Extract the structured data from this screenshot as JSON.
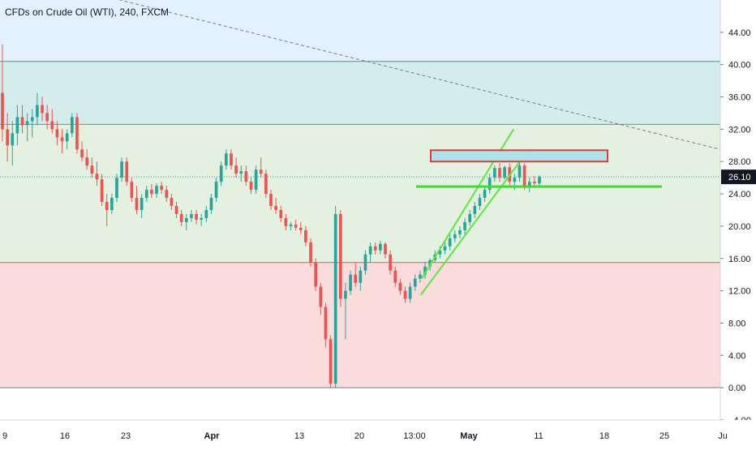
{
  "chart_data": {
    "type": "candlestick",
    "title": "CFDs on Crude Oil (WTI), 240, FXCM",
    "last_price": 26.1,
    "last_price_label": "26.10",
    "ylim": [
      -4,
      48
    ],
    "y_ticks": [
      -4,
      0,
      4,
      8,
      12,
      16,
      20,
      24,
      28,
      32,
      36,
      40,
      44
    ],
    "y_tick_labels": [
      "−4.00",
      "0.00",
      "4.00",
      "8.00",
      "12.00",
      "16.00",
      "20.00",
      "24.00",
      "28.00",
      "32.00",
      "36.00",
      "40.00",
      "44.00"
    ],
    "x_tick_labels": [
      "9",
      "16",
      "23",
      "Apr",
      "13",
      "20",
      "13:00",
      "May",
      "11",
      "18",
      "25",
      "Ju"
    ],
    "zones": [
      {
        "from": 40.4,
        "to": 48,
        "color": "#e3f0fd"
      },
      {
        "from": 32.6,
        "to": 40.4,
        "color": "#d4ecec"
      },
      {
        "from": 15.5,
        "to": 32.6,
        "color": "#e4f1e1"
      },
      {
        "from": 0,
        "to": 15.5,
        "color": "#fadcdc"
      }
    ],
    "horizontal_lines": [
      {
        "y": 40.4,
        "color": "#26a69a"
      },
      {
        "y": 32.6,
        "color": "#4caf50"
      },
      {
        "y": 15.5,
        "color": "#ef5350"
      },
      {
        "y": 0,
        "color": "#787b86"
      }
    ],
    "support_level": 24.9,
    "resistance_box": {
      "from": 28.0,
      "to": 29.4
    },
    "ohlc": [
      [
        36.5,
        42.5,
        30.5,
        32
      ],
      [
        32,
        34,
        28,
        30
      ],
      [
        30,
        33,
        27.5,
        31.5
      ],
      [
        31.5,
        35,
        30,
        33.5
      ],
      [
        33.5,
        35,
        31.5,
        32.5
      ],
      [
        32.5,
        34,
        30.5,
        33
      ],
      [
        33,
        34.5,
        31,
        33.5
      ],
      [
        33.5,
        36.5,
        32.5,
        35
      ],
      [
        35,
        36,
        33,
        34
      ],
      [
        34,
        35,
        32,
        33
      ],
      [
        33,
        34.5,
        31.5,
        32
      ],
      [
        32,
        33,
        30,
        31
      ],
      [
        31,
        32,
        29,
        30.5
      ],
      [
        30.5,
        32,
        29.5,
        31.5
      ],
      [
        31.5,
        34,
        31,
        33.5
      ],
      [
        33.5,
        34,
        29,
        29.5
      ],
      [
        29.5,
        30.5,
        28,
        28.5
      ],
      [
        28.5,
        29.5,
        27,
        27.5
      ],
      [
        27.5,
        28.5,
        26,
        26.5
      ],
      [
        26.5,
        28,
        25,
        25.8
      ],
      [
        25.8,
        26.5,
        22.5,
        23
      ],
      [
        23,
        24,
        20,
        22
      ],
      [
        22,
        24,
        21.5,
        23.5
      ],
      [
        23.5,
        26.5,
        23,
        26
      ],
      [
        26,
        28.5,
        25.5,
        28
      ],
      [
        28,
        28.5,
        25,
        25.5
      ],
      [
        25.5,
        26,
        23,
        23.5
      ],
      [
        23.5,
        25,
        21.5,
        22
      ],
      [
        22,
        24,
        21,
        23.5
      ],
      [
        23.5,
        25,
        23,
        24.5
      ],
      [
        24.5,
        25.2,
        23.5,
        24
      ],
      [
        24,
        25.3,
        23.5,
        25
      ],
      [
        25,
        25.5,
        24,
        24.5
      ],
      [
        24.5,
        25,
        23,
        23.5
      ],
      [
        23.5,
        24,
        22,
        22.5
      ],
      [
        22.5,
        23,
        21,
        21.5
      ],
      [
        21.5,
        22,
        20,
        20.5
      ],
      [
        20.5,
        21.5,
        19.5,
        21
      ],
      [
        21,
        22,
        20.5,
        21.5
      ],
      [
        21.5,
        22,
        20.2,
        20.8
      ],
      [
        20.8,
        21.5,
        20,
        21
      ],
      [
        21,
        22.5,
        20.5,
        22
      ],
      [
        22,
        24,
        21.5,
        23.5
      ],
      [
        23.5,
        26,
        23,
        25.5
      ],
      [
        25.5,
        28,
        25,
        27.5
      ],
      [
        27.5,
        29.5,
        27,
        29
      ],
      [
        29,
        29.5,
        27,
        27.5
      ],
      [
        27.5,
        28.5,
        26,
        26.5
      ],
      [
        26.5,
        27.5,
        25.5,
        26.8
      ],
      [
        26.8,
        27.5,
        25,
        25.5
      ],
      [
        25.5,
        26,
        24,
        24.5
      ],
      [
        24.5,
        27.5,
        24,
        27
      ],
      [
        27,
        28.5,
        26,
        26.5
      ],
      [
        26.5,
        27,
        23.5,
        24
      ],
      [
        24,
        24.5,
        22,
        22.5
      ],
      [
        22.5,
        23.5,
        21.5,
        22
      ],
      [
        22,
        22.5,
        20.5,
        21
      ],
      [
        21,
        21.5,
        19.5,
        20
      ],
      [
        20,
        20.5,
        19.5,
        20.2
      ],
      [
        20.2,
        20.8,
        19.5,
        19.8
      ],
      [
        19.8,
        20.5,
        19,
        19.5
      ],
      [
        19.5,
        20,
        17.5,
        18
      ],
      [
        18,
        18.5,
        15,
        15.5
      ],
      [
        15.5,
        16,
        12,
        12.5
      ],
      [
        12.5,
        13,
        9,
        10
      ],
      [
        10,
        10.5,
        5,
        6
      ],
      [
        6,
        6.5,
        0,
        0.5
      ],
      [
        0.5,
        22.5,
        0,
        21.5
      ],
      [
        21.5,
        22,
        10,
        11
      ],
      [
        11,
        13,
        6,
        12
      ],
      [
        12,
        14.5,
        11.5,
        14
      ],
      [
        14,
        15.5,
        12.5,
        13
      ],
      [
        13,
        15,
        12,
        14.5
      ],
      [
        14.5,
        17,
        14,
        16.5
      ],
      [
        16.5,
        18,
        15.5,
        17.5
      ],
      [
        17.5,
        18,
        16.5,
        17
      ],
      [
        17,
        18.2,
        16.5,
        17.8
      ],
      [
        17.8,
        18,
        16,
        16.5
      ],
      [
        16.5,
        17,
        14,
        14.5
      ],
      [
        14.5,
        15,
        12.5,
        13
      ],
      [
        13,
        13.5,
        11.5,
        12
      ],
      [
        12,
        12.5,
        10.5,
        11
      ],
      [
        11,
        13,
        10.5,
        12.5
      ],
      [
        12.5,
        14,
        12,
        13.5
      ],
      [
        13.5,
        14.5,
        13,
        14
      ],
      [
        14,
        15.5,
        13.5,
        15
      ],
      [
        15,
        16,
        14.5,
        15.8
      ],
      [
        15.8,
        17,
        15.5,
        16.5
      ],
      [
        16.5,
        17.5,
        16,
        17
      ],
      [
        17,
        18,
        16.5,
        17.5
      ],
      [
        17.5,
        19,
        17,
        18.5
      ],
      [
        18.5,
        19.5,
        18,
        19
      ],
      [
        19,
        20,
        18.5,
        19.5
      ],
      [
        19.5,
        21,
        19,
        20.5
      ],
      [
        20.5,
        22,
        20,
        21.5
      ],
      [
        21.5,
        23,
        21,
        22.5
      ],
      [
        22.5,
        24,
        22,
        23.5
      ],
      [
        23.5,
        25,
        23,
        24.5
      ],
      [
        24.5,
        26.5,
        24,
        26
      ],
      [
        26,
        27.5,
        25.5,
        27.2
      ],
      [
        27.2,
        27.8,
        25.5,
        26
      ],
      [
        26,
        27.5,
        25.8,
        27.3
      ],
      [
        27.3,
        27.8,
        25,
        25.5
      ],
      [
        25.5,
        26.5,
        24.5,
        26
      ],
      [
        26,
        28,
        25.5,
        27.5
      ],
      [
        27.5,
        27.8,
        24.5,
        25
      ],
      [
        25,
        26,
        24.2,
        25.5
      ],
      [
        25.5,
        26.2,
        24.8,
        25.3
      ],
      [
        25.3,
        26.3,
        25,
        26.1
      ]
    ]
  },
  "colors": {
    "up": "#26a69a",
    "down": "#ef5350",
    "channel": "#5ee83a",
    "support": "#37e326",
    "box_border": "#e53935",
    "box_fill": "#a8e4ec",
    "trend": "#787b86",
    "label_bg": "#131722"
  }
}
